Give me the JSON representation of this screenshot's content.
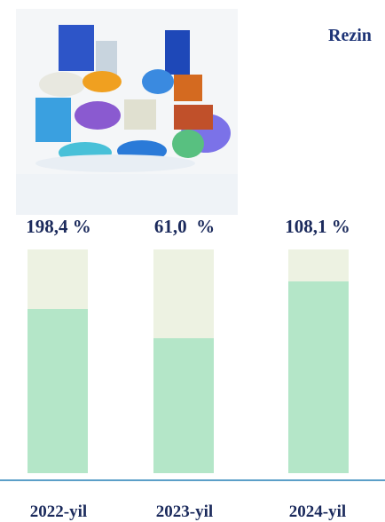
{
  "title": "Rezin",
  "columns": [
    {
      "label": "198,4 %",
      "year": "2022-yil"
    },
    {
      "label": "61,0  %",
      "year": "2023-yil"
    },
    {
      "label": "108,1 %",
      "year": "2024-yil"
    }
  ]
}
